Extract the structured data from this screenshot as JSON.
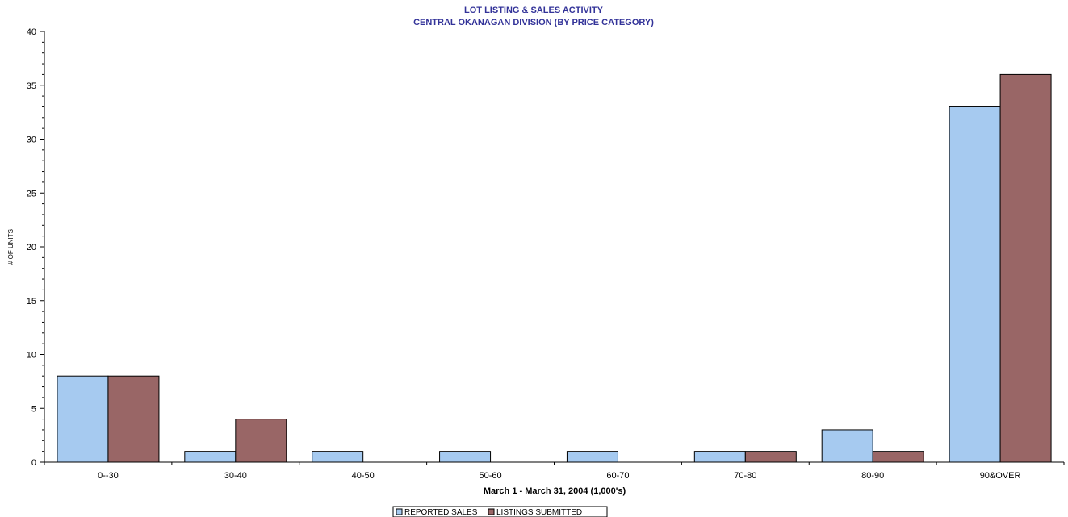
{
  "chart_data": {
    "type": "bar",
    "title": "LOT LISTING & SALES ACTIVITY",
    "subtitle": "CENTRAL OKANAGAN DIVISION (BY PRICE CATEGORY)",
    "xlabel": "March 1 - March 31, 2004 (1,000's)",
    "ylabel": "# OF UNITS",
    "ylim": [
      0,
      40
    ],
    "yticks": [
      "0",
      "5",
      "10",
      "15",
      "20",
      "25",
      "30",
      "35",
      "40"
    ],
    "categories": [
      "0--30",
      "30-40",
      "40-50",
      "50-60",
      "60-70",
      "70-80",
      "80-90",
      "90&OVER"
    ],
    "series": [
      {
        "name": "REPORTED SALES",
        "color": "#A6CAF0",
        "values": [
          8,
          1,
          1,
          1,
          1,
          1,
          3,
          33
        ]
      },
      {
        "name": "LISTINGS SUBMITTED",
        "color": "#996666",
        "values": [
          8,
          4,
          0,
          0,
          0,
          1,
          1,
          36
        ]
      }
    ],
    "grid": false,
    "legend_position": "bottom"
  }
}
